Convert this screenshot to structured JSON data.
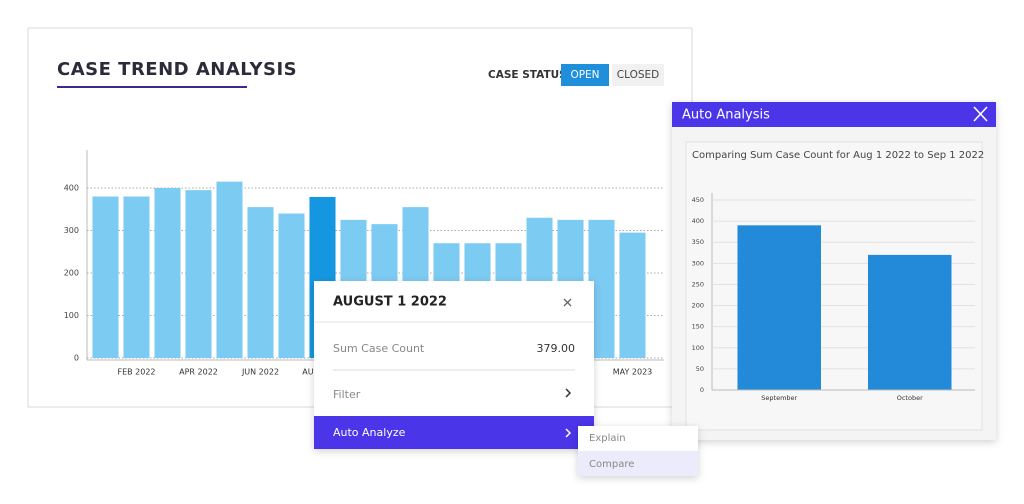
{
  "header": {
    "title": "CASE TREND ANALYSIS"
  },
  "status": {
    "label": "CASE STATUS",
    "options": [
      "OPEN",
      "CLOSED"
    ]
  },
  "trend_chart": {
    "type": "bar",
    "categories": [
      null,
      "FEB 2022",
      null,
      "APR 2022",
      null,
      "JUN 2022",
      null,
      "AUG 2022",
      null,
      null,
      null,
      null,
      null,
      null,
      null,
      null,
      null,
      "MAY 2023"
    ],
    "values": [
      380,
      380,
      400,
      395,
      415,
      355,
      340,
      379,
      325,
      315,
      355,
      270,
      270,
      270,
      330,
      325,
      325,
      295
    ],
    "color": "#7ccbf3",
    "highlight_color": "#1497e0",
    "highlight_index": 7,
    "ylim": [
      0,
      480
    ],
    "yticks": [
      0,
      100,
      200,
      300,
      400
    ],
    "grid": true
  },
  "popup": {
    "title": "AUGUST 1 2022",
    "metric_label": "Sum Case Count",
    "metric_value": "379.00",
    "items": [
      "Filter",
      "Auto Analyze"
    ],
    "submenu": [
      "Explain",
      "Compare"
    ]
  },
  "analysis_panel": {
    "title": "Auto Analysis",
    "chart": {
      "type": "bar",
      "title": "Comparing Sum Case Count for Aug 1 2022 to Sep 1 2022",
      "categories": [
        "September",
        "October"
      ],
      "values": [
        390,
        320
      ],
      "color": "#228ad8",
      "ylim": [
        0,
        450
      ],
      "yticks": [
        0,
        50,
        100,
        150,
        200,
        250,
        300,
        350,
        400,
        450
      ],
      "grid": true
    }
  }
}
